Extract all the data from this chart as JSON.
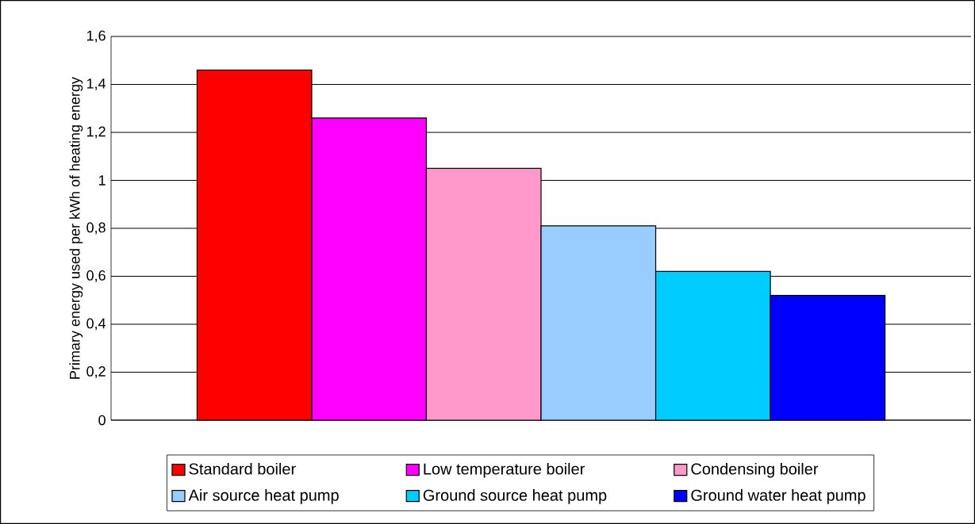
{
  "chart_data": {
    "type": "bar",
    "ylabel": "Primary energy used per kWh of heating energy",
    "categories": [
      null
    ],
    "series": [
      {
        "name": "Standard boiler",
        "color": "#ff0000",
        "values": [
          1.46
        ]
      },
      {
        "name": "Low temperature boiler",
        "color": "#ff00ff",
        "values": [
          1.26
        ]
      },
      {
        "name": "Condensing boiler",
        "color": "#ff99cc",
        "values": [
          1.05
        ]
      },
      {
        "name": "Air source heat pump",
        "color": "#99ccff",
        "values": [
          0.81
        ]
      },
      {
        "name": "Ground source heat pump",
        "color": "#00ccff",
        "values": [
          0.62
        ]
      },
      {
        "name": "Ground water heat pump",
        "color": "#0000ff",
        "values": [
          0.52
        ]
      }
    ],
    "ylim": [
      0,
      1.6
    ],
    "yticks": [
      0,
      {
        "value": 0.2,
        "label": "0,2"
      },
      {
        "value": 0.4,
        "label": "0,4"
      },
      {
        "value": 0.6,
        "label": "0,6"
      },
      {
        "value": 0.8,
        "label": "0,8"
      },
      1,
      {
        "value": 1.2,
        "label": "1,2"
      },
      {
        "value": 1.4,
        "label": "1,4"
      },
      {
        "value": 1.6,
        "label": "1,6"
      }
    ],
    "grid": "y",
    "legend": "bottom"
  }
}
